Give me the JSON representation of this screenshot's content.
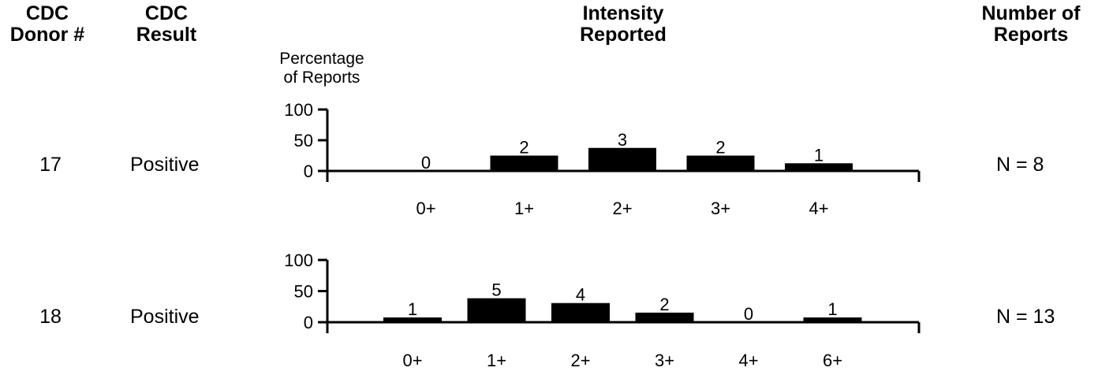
{
  "headers": {
    "donor": [
      "CDC",
      "Donor #"
    ],
    "result": [
      "CDC",
      "Result"
    ],
    "intensity": [
      "Intensity",
      "Reported"
    ],
    "reports": [
      "Number of",
      "Reports"
    ]
  },
  "y_axis_title": [
    "Percentage",
    "of Reports"
  ],
  "rows": [
    {
      "donor": "17",
      "result": "Positive",
      "n_label": "N = 8"
    },
    {
      "donor": "18",
      "result": "Positive",
      "n_label": "N = 13"
    }
  ],
  "chart_data": [
    {
      "type": "bar",
      "categories": [
        "0+",
        "1+",
        "2+",
        "3+",
        "4+"
      ],
      "values": [
        0,
        25,
        37.5,
        25,
        12.5
      ],
      "counts": [
        "0",
        "2",
        "3",
        "2",
        "1"
      ],
      "ylabel": "Percentage of Reports",
      "ylim": [
        0,
        100
      ],
      "yticks": [
        "0",
        "50",
        "100"
      ],
      "grid": false
    },
    {
      "type": "bar",
      "categories": [
        "0+",
        "1+",
        "2+",
        "3+",
        "4+",
        "6+"
      ],
      "values": [
        7.7,
        38.5,
        30.8,
        15.4,
        0,
        7.7
      ],
      "counts": [
        "1",
        "5",
        "4",
        "2",
        "0",
        "1"
      ],
      "ylabel": "",
      "ylim": [
        0,
        100
      ],
      "yticks": [
        "0",
        "50",
        "100"
      ],
      "grid": false
    }
  ]
}
